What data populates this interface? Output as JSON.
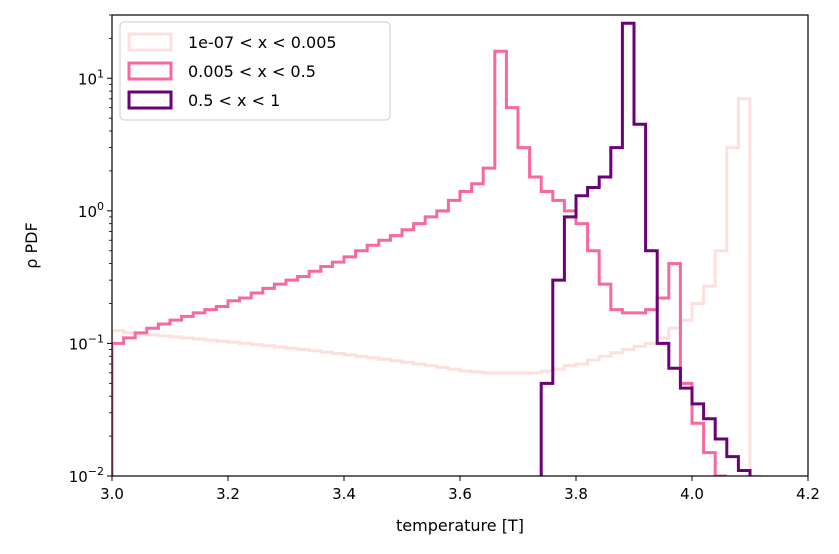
{
  "chart_data": {
    "type": "histogram-step",
    "xlabel": "temperature [T]",
    "ylabel": "ρ PDF",
    "xlim": [
      3.0,
      4.2
    ],
    "ylim": [
      0.01,
      30
    ],
    "yscale": "log",
    "grid": false,
    "legend_position": "top-left",
    "x_ticks": [
      "3.0",
      "3.2",
      "3.4",
      "3.6",
      "3.8",
      "4.0",
      "4.2"
    ],
    "y_ticks": [
      {
        "base": "10",
        "exp": "1",
        "value": 10
      },
      {
        "base": "10",
        "exp": "0",
        "value": 1
      },
      {
        "base": "10",
        "exp": "−1",
        "value": 0.1
      },
      {
        "base": "10",
        "exp": "−2",
        "value": 0.01
      }
    ],
    "series": [
      {
        "name": "1e-07 < x < 0.005",
        "color": "#fde0dd",
        "bin_start": 3.0,
        "bin_width": 0.02,
        "values": [
          0.125,
          0.12,
          0.118,
          0.116,
          0.114,
          0.112,
          0.11,
          0.108,
          0.106,
          0.104,
          0.102,
          0.1,
          0.098,
          0.096,
          0.094,
          0.092,
          0.09,
          0.088,
          0.086,
          0.084,
          0.082,
          0.08,
          0.078,
          0.076,
          0.074,
          0.072,
          0.07,
          0.068,
          0.066,
          0.064,
          0.062,
          0.061,
          0.06,
          0.06,
          0.06,
          0.06,
          0.06,
          0.062,
          0.064,
          0.068,
          0.07,
          0.075,
          0.08,
          0.085,
          0.09,
          0.095,
          0.1,
          0.11,
          0.13,
          0.15,
          0.2,
          0.27,
          0.5,
          3.0,
          7.0,
          0.01
        ]
      },
      {
        "name": "0.005 < x < 0.5",
        "color": "#f768a1",
        "bin_start": 3.0,
        "bin_width": 0.02,
        "values": [
          0.1,
          0.11,
          0.12,
          0.13,
          0.14,
          0.15,
          0.16,
          0.17,
          0.18,
          0.19,
          0.21,
          0.22,
          0.24,
          0.26,
          0.28,
          0.3,
          0.32,
          0.35,
          0.38,
          0.41,
          0.45,
          0.5,
          0.55,
          0.6,
          0.65,
          0.72,
          0.8,
          0.9,
          1.0,
          1.2,
          1.4,
          1.6,
          2.1,
          16.0,
          6.0,
          3.0,
          1.8,
          1.4,
          1.2,
          1.0,
          0.8,
          0.5,
          0.28,
          0.18,
          0.17,
          0.17,
          0.18,
          0.22,
          0.4,
          0.05,
          0.025,
          0.015,
          0.01
        ]
      },
      {
        "name": "0.5 < x < 1",
        "color": "#6a0177",
        "bin_start": 3.74,
        "bin_width": 0.02,
        "values": [
          0.05,
          0.3,
          0.9,
          1.3,
          1.5,
          1.8,
          3.0,
          26.0,
          4.5,
          0.5,
          0.1,
          0.065,
          0.046,
          0.035,
          0.027,
          0.019,
          0.014,
          0.011
        ]
      }
    ]
  }
}
